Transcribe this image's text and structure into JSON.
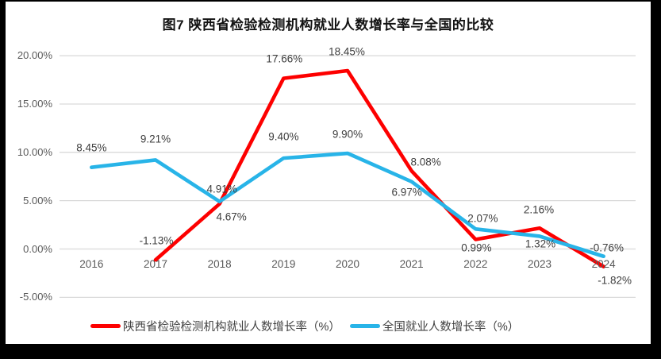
{
  "title": "图7 陕西省检验检测机构就业人数增长率与全国的比较",
  "chart_data": {
    "type": "line",
    "categories": [
      "2016",
      "2017",
      "2018",
      "2019",
      "2020",
      "2021",
      "2022",
      "2023",
      "2024"
    ],
    "series": [
      {
        "name": "陕西省检验检测机构就业人数增长率（%）",
        "color": "#fd0000",
        "values": [
          null,
          -1.13,
          4.67,
          17.66,
          18.45,
          8.08,
          0.99,
          2.16,
          -1.82
        ],
        "labels": [
          null,
          "-1.13%",
          "4.67%",
          "17.66%",
          "18.45%",
          "8.08%",
          "0.99%",
          "2.16%",
          "-1.82%"
        ],
        "label_offsets": [
          null,
          [
            1,
            -24
          ],
          [
            15,
            16
          ],
          [
            1,
            -25
          ],
          [
            -1,
            -24
          ],
          [
            18,
            -11
          ],
          [
            1,
            11
          ],
          [
            -1,
            -23
          ],
          [
            14,
            17
          ]
        ]
      },
      {
        "name": "全国就业人数增长率（%）",
        "color": "#28b4e8",
        "values": [
          8.45,
          9.21,
          4.91,
          9.4,
          9.9,
          6.97,
          2.07,
          1.32,
          -0.76
        ],
        "labels": [
          "8.45%",
          "9.21%",
          "4.91%",
          "9.40%",
          "9.90%",
          "6.97%",
          "2.07%",
          "1.32%",
          "-0.76%"
        ],
        "label_offsets": [
          [
            0,
            -25
          ],
          [
            0,
            -26
          ],
          [
            3,
            -16
          ],
          [
            0,
            -27
          ],
          [
            0,
            -24
          ],
          [
            -6,
            13
          ],
          [
            9,
            -13
          ],
          [
            1,
            10
          ],
          [
            4,
            -11
          ]
        ]
      }
    ],
    "y_ticks": [
      {
        "value": 20,
        "label": "20.00%"
      },
      {
        "value": 15,
        "label": "15.00%"
      },
      {
        "value": 10,
        "label": "10.00%"
      },
      {
        "value": 5,
        "label": "5.00%"
      },
      {
        "value": 0,
        "label": "0.00%"
      },
      {
        "value": -5,
        "label": "-5.00%"
      }
    ],
    "ylim": [
      -5,
      20
    ],
    "grid": true,
    "legend_position": "bottom"
  },
  "colors": {
    "gridline": "#d9d9d9",
    "axis_text": "#595959",
    "data_label_text": "#3d3d3d",
    "chart_background": "#ffffff",
    "frame": "#000000"
  }
}
